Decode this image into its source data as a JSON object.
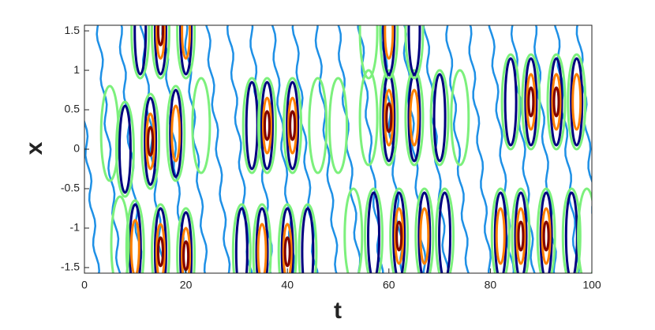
{
  "chart_data": {
    "type": "contour",
    "xlabel": "t",
    "ylabel": "x",
    "xlim": [
      0,
      100
    ],
    "xticks": [
      0,
      20,
      40,
      60,
      80,
      100
    ],
    "ylim": [
      -1.5708,
      1.5708
    ],
    "yticks": [
      -1.5,
      -1,
      -0.5,
      0,
      0.5,
      1,
      1.5
    ],
    "colors": [
      "#1e90e6",
      "#7cf07c",
      "#00007f",
      "#ff8000",
      "#800000"
    ]
  }
}
